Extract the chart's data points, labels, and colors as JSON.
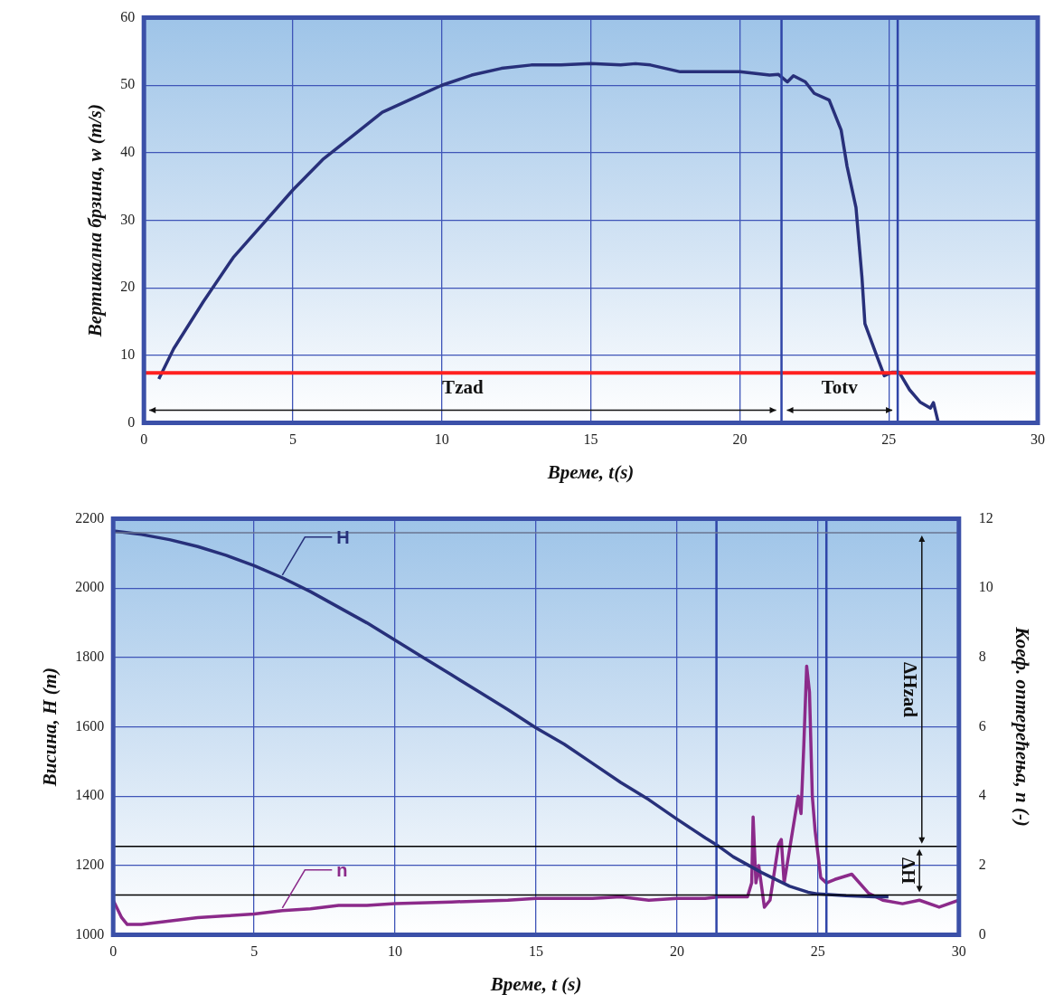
{
  "chart_data": [
    {
      "type": "line",
      "xlabel": "Време, t(s)",
      "ylabel": "Вертикална брзина, w (m/s)",
      "xlim": [
        0,
        30
      ],
      "xticks": [
        0,
        5,
        10,
        15,
        20,
        25,
        30
      ],
      "ylim": [
        0,
        60
      ],
      "yticks": [
        0,
        10,
        20,
        30,
        40,
        50,
        60
      ],
      "grid": true,
      "legend": false,
      "marker": "none",
      "line_style": "solid",
      "x": [
        0.5,
        1,
        2,
        3,
        4,
        5,
        6,
        7,
        8,
        9,
        10,
        11,
        12,
        13,
        14,
        15,
        16,
        16.5,
        17,
        18,
        19,
        20,
        21,
        21.3,
        21.6,
        21.8,
        22.2,
        22.5,
        23,
        23.4,
        23.6,
        23.9,
        24.1,
        24.2,
        24.6,
        24.85,
        25.1,
        25.35,
        25.7,
        26.05,
        26.4,
        26.5,
        26.65
      ],
      "series": [
        {
          "color": "#28307a",
          "values": [
            6.5,
            11,
            18,
            24.5,
            29.5,
            34.5,
            39,
            42.5,
            46,
            48,
            50,
            51.5,
            52.5,
            53,
            53,
            53.2,
            53,
            53.2,
            53,
            52,
            52,
            52,
            51.5,
            51.6,
            50.5,
            51.4,
            50.5,
            48.8,
            47.8,
            43.4,
            38,
            31.9,
            21.6,
            14.7,
            9.9,
            7,
            7.5,
            7.5,
            4.9,
            3.1,
            2.2,
            3,
            0.3
          ]
        }
      ],
      "ref_lines": [
        {
          "axis": "y",
          "value": 7.4,
          "color": "#ff2020"
        },
        {
          "axis": "x",
          "value": 21.4,
          "color": "#2f45a8"
        },
        {
          "axis": "x",
          "value": 25.3,
          "color": "#2f45a8"
        }
      ],
      "annotations": [
        "Tzad",
        "Totv"
      ]
    },
    {
      "type": "line",
      "xlabel": "Време, t (s)",
      "ylabel": "Висина, H (m)",
      "y2label": "Коеф. оптерећења, n (-)",
      "xlim": [
        0,
        30
      ],
      "xticks": [
        0,
        5,
        10,
        15,
        20,
        25,
        30
      ],
      "ylim": [
        1000,
        2200
      ],
      "yticks": [
        1000,
        1200,
        1400,
        1600,
        1800,
        2000,
        2200
      ],
      "y2lim": [
        0,
        12
      ],
      "y2ticks": [
        0,
        2,
        4,
        6,
        8,
        10,
        12
      ],
      "grid": true,
      "legend": false,
      "marker": "none",
      "line_style": "solid",
      "series": [
        {
          "name": "H",
          "color": "#27307a",
          "x": [
            0,
            1,
            2,
            3,
            4,
            5,
            6,
            7,
            8,
            9,
            10,
            11,
            12,
            13,
            14,
            15,
            16,
            17,
            18,
            19,
            20,
            21,
            21.4,
            22,
            23,
            24,
            24.65,
            25,
            26,
            27,
            27.5
          ],
          "values": [
            2165,
            2155,
            2140,
            2120,
            2095,
            2065,
            2030,
            1990,
            1945,
            1900,
            1850,
            1800,
            1750,
            1700,
            1650,
            1597,
            1550,
            1495,
            1440,
            1390,
            1334,
            1280,
            1260,
            1225,
            1180,
            1140,
            1123,
            1118,
            1113,
            1110,
            1110
          ]
        },
        {
          "name": "n",
          "color": "#8b2a8a",
          "axis": "y2",
          "x": [
            0,
            0.3,
            0.5,
            1,
            2,
            3,
            4,
            5,
            6,
            7,
            8,
            9,
            10,
            12,
            14,
            15,
            16,
            17,
            18,
            19,
            20,
            21,
            21.5,
            22,
            22.5,
            22.65,
            22.7,
            22.8,
            22.9,
            23.1,
            23.3,
            23.6,
            23.7,
            23.8,
            24,
            24.3,
            24.4,
            24.5,
            24.6,
            24.7,
            24.8,
            24.9,
            25.1,
            25.3,
            25.6,
            26.2,
            26.8,
            27.3,
            28,
            28.6,
            29.3,
            30
          ],
          "values": [
            1,
            0.5,
            0.3,
            0.3,
            0.4,
            0.5,
            0.55,
            0.6,
            0.7,
            0.75,
            0.85,
            0.85,
            0.9,
            0.95,
            1,
            1.05,
            1.05,
            1.05,
            1.1,
            1,
            1.05,
            1.05,
            1.1,
            1.1,
            1.1,
            1.5,
            3.4,
            1.5,
            2,
            0.8,
            1,
            2.6,
            2.75,
            1.5,
            2.5,
            4,
            3.5,
            5.5,
            7.75,
            7,
            4,
            3,
            1.65,
            1.5,
            1.6,
            1.75,
            1.2,
            1,
            0.9,
            1,
            0.8,
            1
          ]
        }
      ],
      "ref_lines": [
        {
          "axis": "x",
          "value": 21.4,
          "color": "#2f45a8"
        },
        {
          "axis": "x",
          "value": 25.3,
          "color": "#2f45a8"
        },
        {
          "axis": "y",
          "value": 2160,
          "color": "#6a7590"
        },
        {
          "axis": "y",
          "value": 1255,
          "color": "#000000"
        },
        {
          "axis": "y",
          "value": 1115,
          "color": "#000000"
        }
      ],
      "annotations": [
        "ΔHzad",
        {
          "text": "ΔH",
          "x": 28.6,
          "y": 1255
        }
      ]
    }
  ]
}
